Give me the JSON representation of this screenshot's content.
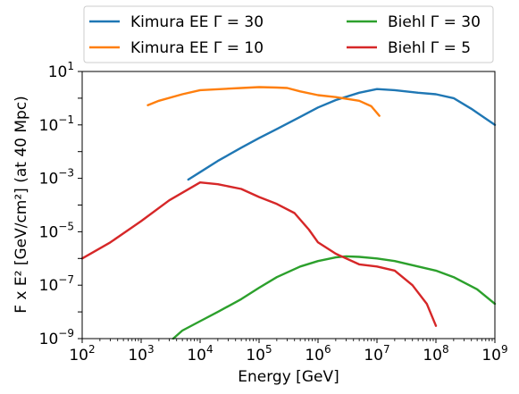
{
  "chart_data": {
    "type": "line",
    "xlabel": "Energy [GeV]",
    "ylabel": "F x E² [GeV/cm²] (at 40 Mpc)",
    "xscale": "log",
    "yscale": "log",
    "xlim": [
      100,
      1000000000
    ],
    "ylim": [
      1e-09,
      10
    ],
    "x_ticks": [
      {
        "value": 100,
        "base": "10",
        "exp": "2"
      },
      {
        "value": 1000,
        "base": "10",
        "exp": "3"
      },
      {
        "value": 10000,
        "base": "10",
        "exp": "4"
      },
      {
        "value": 100000,
        "base": "10",
        "exp": "5"
      },
      {
        "value": 1000000,
        "base": "10",
        "exp": "6"
      },
      {
        "value": 10000000,
        "base": "10",
        "exp": "7"
      },
      {
        "value": 100000000,
        "base": "10",
        "exp": "8"
      },
      {
        "value": 1000000000,
        "base": "10",
        "exp": "9"
      }
    ],
    "y_ticks": [
      {
        "value": 1e-09,
        "base": "10",
        "exp": "−9"
      },
      {
        "value": 1e-07,
        "base": "10",
        "exp": "−7"
      },
      {
        "value": 1e-05,
        "base": "10",
        "exp": "−5"
      },
      {
        "value": 0.001,
        "base": "10",
        "exp": "−3"
      },
      {
        "value": 0.1,
        "base": "10",
        "exp": "−1"
      },
      {
        "value": 10,
        "base": "10",
        "exp": "1"
      }
    ],
    "grid": false,
    "legend": {
      "placement": "top, above plot",
      "columns": 2
    },
    "series": [
      {
        "name": "Kimura EE Γ = 30",
        "color": "#1f77b4",
        "points": [
          [
            6300,
            0.0009
          ],
          [
            10000,
            0.0017
          ],
          [
            20000,
            0.0045
          ],
          [
            50000,
            0.014
          ],
          [
            100000,
            0.032
          ],
          [
            200000,
            0.07
          ],
          [
            500000,
            0.2
          ],
          [
            1000000,
            0.45
          ],
          [
            2000000,
            0.85
          ],
          [
            5000000,
            1.6
          ],
          [
            10000000,
            2.2
          ],
          [
            20000000,
            2.0
          ],
          [
            50000000,
            1.6
          ],
          [
            100000000,
            1.4
          ],
          [
            200000000,
            1.0
          ],
          [
            400000000,
            0.4
          ],
          [
            1000000000,
            0.1
          ]
        ]
      },
      {
        "name": "Kimura EE Γ = 10",
        "color": "#ff7f0e",
        "points": [
          [
            1300,
            0.55
          ],
          [
            2000,
            0.8
          ],
          [
            5000,
            1.4
          ],
          [
            10000,
            2.0
          ],
          [
            50000,
            2.4
          ],
          [
            100000,
            2.6
          ],
          [
            200000,
            2.5
          ],
          [
            300000,
            2.4
          ],
          [
            500000,
            1.8
          ],
          [
            1000000,
            1.3
          ],
          [
            2000000,
            1.1
          ],
          [
            5000000,
            0.8
          ],
          [
            8000000,
            0.5
          ],
          [
            11000000,
            0.22
          ]
        ]
      },
      {
        "name": "Biehl Γ = 30",
        "color": "#2ca02c",
        "points": [
          [
            3500,
            1e-09
          ],
          [
            5000,
            2e-09
          ],
          [
            10000,
            4.5e-09
          ],
          [
            20000,
            1e-08
          ],
          [
            50000,
            3e-08
          ],
          [
            100000,
            8e-08
          ],
          [
            200000,
            2e-07
          ],
          [
            500000,
            5e-07
          ],
          [
            1000000,
            8e-07
          ],
          [
            2000000,
            1.1e-06
          ],
          [
            3000000,
            1.2e-06
          ],
          [
            5000000,
            1.15e-06
          ],
          [
            10000000,
            1e-06
          ],
          [
            20000000,
            8e-07
          ],
          [
            50000000,
            5e-07
          ],
          [
            100000000,
            3.5e-07
          ],
          [
            200000000,
            2e-07
          ],
          [
            500000000,
            7e-08
          ],
          [
            1000000000,
            2e-08
          ]
        ]
      },
      {
        "name": "Biehl Γ = 5",
        "color": "#d62728",
        "points": [
          [
            100,
            1e-06
          ],
          [
            300,
            4e-06
          ],
          [
            1000,
            2.5e-05
          ],
          [
            3000,
            0.00015
          ],
          [
            10000,
            0.0007
          ],
          [
            20000,
            0.0006
          ],
          [
            50000,
            0.0004
          ],
          [
            100000,
            0.0002
          ],
          [
            200000,
            0.00011
          ],
          [
            400000,
            5e-05
          ],
          [
            700000,
            1.2e-05
          ],
          [
            1000000,
            4e-06
          ],
          [
            2000000,
            1.5e-06
          ],
          [
            5000000,
            6e-07
          ],
          [
            10000000,
            5e-07
          ],
          [
            20000000,
            3.5e-07
          ],
          [
            40000000,
            1e-07
          ],
          [
            70000000,
            2e-08
          ],
          [
            100000000,
            3e-09
          ]
        ]
      }
    ]
  }
}
